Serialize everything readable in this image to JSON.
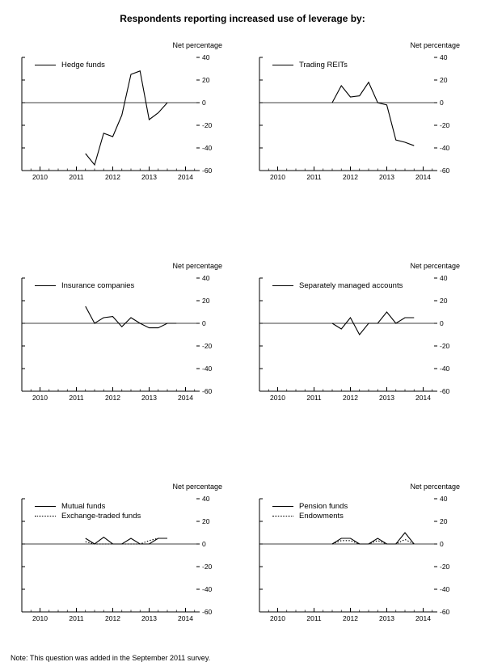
{
  "page": {
    "title": "Respondents reporting increased use of leverage by:",
    "note": "Note:  This question was added in the September 2011 survey."
  },
  "chart_data": [
    {
      "id": "hedge-funds",
      "type": "line",
      "ylabel": "Net percentage",
      "ylim": [
        -60,
        40
      ],
      "yticks": [
        40,
        20,
        0,
        -20,
        -40,
        -60
      ],
      "xticks": [
        2010,
        2011,
        2012,
        2013,
        2014
      ],
      "xlim": [
        2009.5,
        2014.3
      ],
      "series": [
        {
          "name": "Hedge funds",
          "style": "solid",
          "x": [
            2011.25,
            2011.5,
            2011.75,
            2012.0,
            2012.25,
            2012.5,
            2012.75,
            2013.0,
            2013.25,
            2013.5
          ],
          "values": [
            -45,
            -55,
            -27,
            -30,
            -11,
            25,
            28,
            -15,
            -9,
            0
          ]
        }
      ]
    },
    {
      "id": "trading-reits",
      "type": "line",
      "ylabel": "Net percentage",
      "ylim": [
        -60,
        40
      ],
      "yticks": [
        40,
        20,
        0,
        -20,
        -40,
        -60
      ],
      "xticks": [
        2010,
        2011,
        2012,
        2013,
        2014
      ],
      "xlim": [
        2009.5,
        2014.3
      ],
      "series": [
        {
          "name": "Trading REITs",
          "style": "solid",
          "x": [
            2011.5,
            2011.75,
            2012.0,
            2012.25,
            2012.5,
            2012.75,
            2013.0,
            2013.25,
            2013.5,
            2013.75
          ],
          "values": [
            0,
            15,
            5,
            6,
            18,
            0,
            -2,
            -33,
            -35,
            -38
          ]
        }
      ]
    },
    {
      "id": "insurance-companies",
      "type": "line",
      "ylabel": "Net percentage",
      "ylim": [
        -60,
        40
      ],
      "yticks": [
        40,
        20,
        0,
        -20,
        -40,
        -60
      ],
      "xticks": [
        2010,
        2011,
        2012,
        2013,
        2014
      ],
      "xlim": [
        2009.5,
        2014.3
      ],
      "series": [
        {
          "name": "Insurance companies",
          "style": "solid",
          "x": [
            2011.25,
            2011.5,
            2011.75,
            2012.0,
            2012.25,
            2012.5,
            2012.75,
            2013.0,
            2013.25,
            2013.5,
            2013.75
          ],
          "values": [
            15,
            0,
            5,
            6,
            -3,
            5,
            0,
            -4,
            -4,
            0,
            0
          ]
        }
      ]
    },
    {
      "id": "separately-managed-accounts",
      "type": "line",
      "ylabel": "Net percentage",
      "ylim": [
        -60,
        40
      ],
      "yticks": [
        40,
        20,
        0,
        -20,
        -40,
        -60
      ],
      "xticks": [
        2010,
        2011,
        2012,
        2013,
        2014
      ],
      "xlim": [
        2009.5,
        2014.3
      ],
      "series": [
        {
          "name": "Separately managed accounts",
          "style": "solid",
          "x": [
            2011.5,
            2011.75,
            2012.0,
            2012.25,
            2012.5,
            2012.75,
            2013.0,
            2013.25,
            2013.5,
            2013.75
          ],
          "values": [
            0,
            -5,
            5,
            -10,
            0,
            0,
            10,
            0,
            5,
            5
          ]
        }
      ]
    },
    {
      "id": "mutual-funds-etfs",
      "type": "line",
      "ylabel": "Net percentage",
      "ylim": [
        -60,
        40
      ],
      "yticks": [
        40,
        20,
        0,
        -20,
        -40,
        -60
      ],
      "xticks": [
        2010,
        2011,
        2012,
        2013,
        2014
      ],
      "xlim": [
        2009.5,
        2014.3
      ],
      "series": [
        {
          "name": "Mutual funds",
          "style": "solid",
          "x": [
            2011.25,
            2011.5,
            2011.75,
            2012.0,
            2012.25,
            2012.5,
            2012.75,
            2013.0,
            2013.25,
            2013.5
          ],
          "values": [
            5,
            0,
            6,
            0,
            0,
            5,
            0,
            0,
            5,
            5
          ]
        },
        {
          "name": "Exchange-traded funds",
          "style": "dotted",
          "x": [
            2011.25,
            2011.5,
            2011.75,
            2012.0,
            2012.25,
            2012.5,
            2012.75,
            2013.0,
            2013.25,
            2013.5
          ],
          "values": [
            2,
            0,
            0,
            0,
            0,
            0,
            0,
            3,
            5,
            5
          ]
        }
      ]
    },
    {
      "id": "pension-funds-endowments",
      "type": "line",
      "ylabel": "Net percentage",
      "ylim": [
        -60,
        40
      ],
      "yticks": [
        40,
        20,
        0,
        -20,
        -40,
        -60
      ],
      "xticks": [
        2010,
        2011,
        2012,
        2013,
        2014
      ],
      "xlim": [
        2009.5,
        2014.3
      ],
      "series": [
        {
          "name": "Pension funds",
          "style": "solid",
          "x": [
            2011.5,
            2011.75,
            2012.0,
            2012.25,
            2012.5,
            2012.75,
            2013.0,
            2013.25,
            2013.5,
            2013.75
          ],
          "values": [
            0,
            5,
            5,
            0,
            0,
            5,
            0,
            0,
            10,
            0
          ]
        },
        {
          "name": "Endowments",
          "style": "dotted",
          "x": [
            2011.5,
            2011.75,
            2012.0,
            2012.25,
            2012.5,
            2012.75,
            2013.0,
            2013.25,
            2013.5,
            2013.75
          ],
          "values": [
            0,
            3,
            3,
            0,
            0,
            3,
            0,
            0,
            4,
            0
          ]
        }
      ]
    }
  ]
}
